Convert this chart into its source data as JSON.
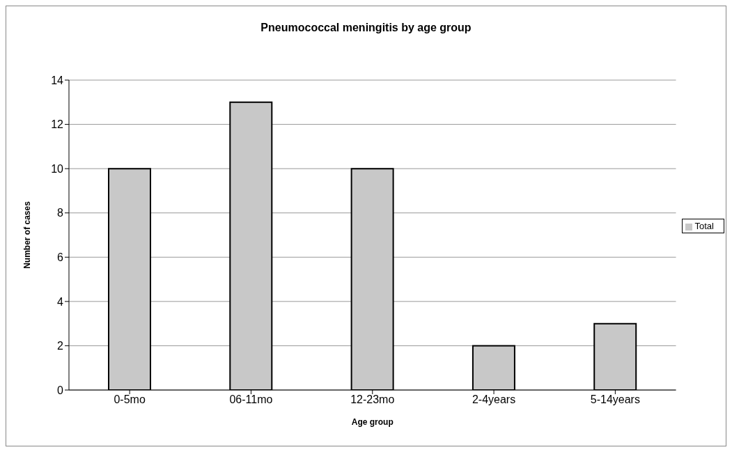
{
  "chart_data": {
    "type": "bar",
    "title": "Pneumococcal meningitis by age group",
    "xlabel": "Age group",
    "ylabel": "Number of cases",
    "categories": [
      "0-5mo",
      "06-11mo",
      "12-23mo",
      "2-4years",
      "5-14years"
    ],
    "series": [
      {
        "name": "Total",
        "color": "#c8c8c8",
        "values": [
          10,
          13,
          10,
          2,
          3
        ]
      }
    ],
    "ylim": [
      0,
      14
    ],
    "yticks": [
      0,
      2,
      4,
      6,
      8,
      10,
      12,
      14
    ],
    "grid": "y",
    "legend": "right"
  }
}
